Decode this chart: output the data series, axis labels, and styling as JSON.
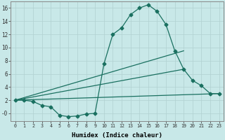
{
  "xlabel": "Humidex (Indice chaleur)",
  "background_color": "#c8e8e8",
  "grid_color": "#b0d0d0",
  "line_color": "#1a7060",
  "xlim": [
    -0.5,
    23.5
  ],
  "ylim": [
    -1.2,
    17.0
  ],
  "xticks": [
    0,
    1,
    2,
    3,
    4,
    5,
    6,
    7,
    8,
    9,
    10,
    11,
    12,
    13,
    14,
    15,
    16,
    17,
    18,
    19,
    20,
    21,
    22,
    23
  ],
  "yticks": [
    0,
    2,
    4,
    6,
    8,
    10,
    12,
    14,
    16
  ],
  "ytick_labels": [
    "-0",
    "2",
    "4",
    "6",
    "8",
    "10",
    "12",
    "14",
    "16"
  ],
  "line1_x": [
    0,
    1,
    2,
    3,
    4,
    5,
    6,
    7,
    8,
    9,
    10,
    11,
    12,
    13,
    14,
    15,
    16,
    17,
    18,
    19,
    20,
    21,
    22,
    23
  ],
  "line1_y": [
    2.0,
    2.0,
    1.8,
    1.2,
    1.0,
    -0.3,
    -0.5,
    -0.4,
    -0.1,
    0.0,
    7.5,
    12.0,
    13.0,
    15.0,
    16.0,
    16.5,
    15.5,
    13.5,
    9.5,
    6.7,
    5.0,
    4.2,
    3.0,
    3.0
  ],
  "line2_x": [
    0,
    19
  ],
  "line2_y": [
    2.0,
    9.5
  ],
  "line3_x": [
    0,
    19
  ],
  "line3_y": [
    2.0,
    6.7
  ],
  "line4_x": [
    0,
    23
  ],
  "line4_y": [
    2.0,
    3.0
  ]
}
